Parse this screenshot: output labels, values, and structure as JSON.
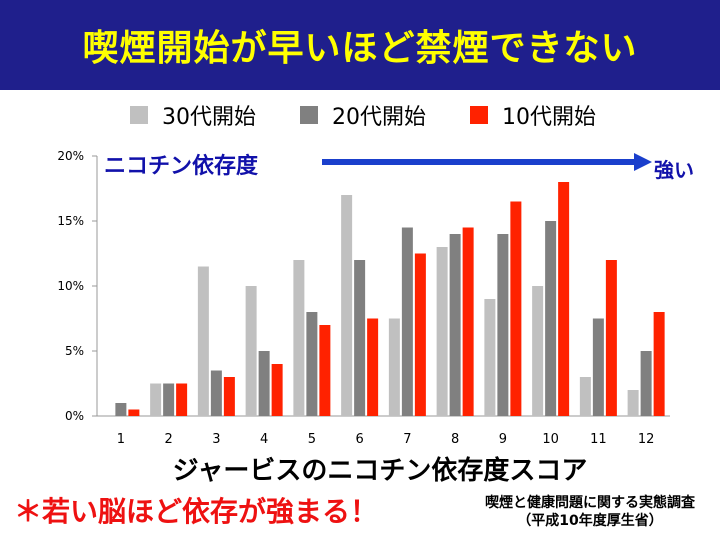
{
  "title": "喫煙開始が早いほど禁煙できない",
  "chart_data": {
    "type": "bar",
    "categories": [
      "1",
      "2",
      "3",
      "4",
      "5",
      "6",
      "7",
      "8",
      "9",
      "10",
      "11",
      "12"
    ],
    "series": [
      {
        "name": "30代開始",
        "color": "#c0c0c0",
        "values": [
          0,
          2.5,
          11.5,
          10,
          12,
          17,
          7.5,
          13,
          9,
          10,
          3,
          2
        ]
      },
      {
        "name": "20代開始",
        "color": "#808080",
        "values": [
          1,
          2.5,
          3.5,
          5,
          8,
          12,
          14.5,
          14,
          14,
          15,
          7.5,
          5
        ]
      },
      {
        "name": "10代開始",
        "color": "#ff2200",
        "values": [
          0.5,
          2.5,
          3,
          4,
          7,
          7.5,
          12.5,
          14.5,
          16.5,
          18,
          12,
          8
        ]
      }
    ],
    "y_ticks": [
      "0%",
      "5%",
      "10%",
      "15%",
      "20%"
    ],
    "ylim": [
      0,
      20
    ],
    "xlabel": "ジャービスのニコチン依存度スコア",
    "arrow_label": "ニコチン依存度",
    "arrow_end_label": "強い",
    "arrow_color": "#1a3fcc",
    "grid": false
  },
  "footer": {
    "message": "＊若い脳ほど依存が強まる！",
    "source_line1": "喫煙と健康問題に関する実態調査",
    "source_line2": "（平成10年度厚生省）"
  }
}
